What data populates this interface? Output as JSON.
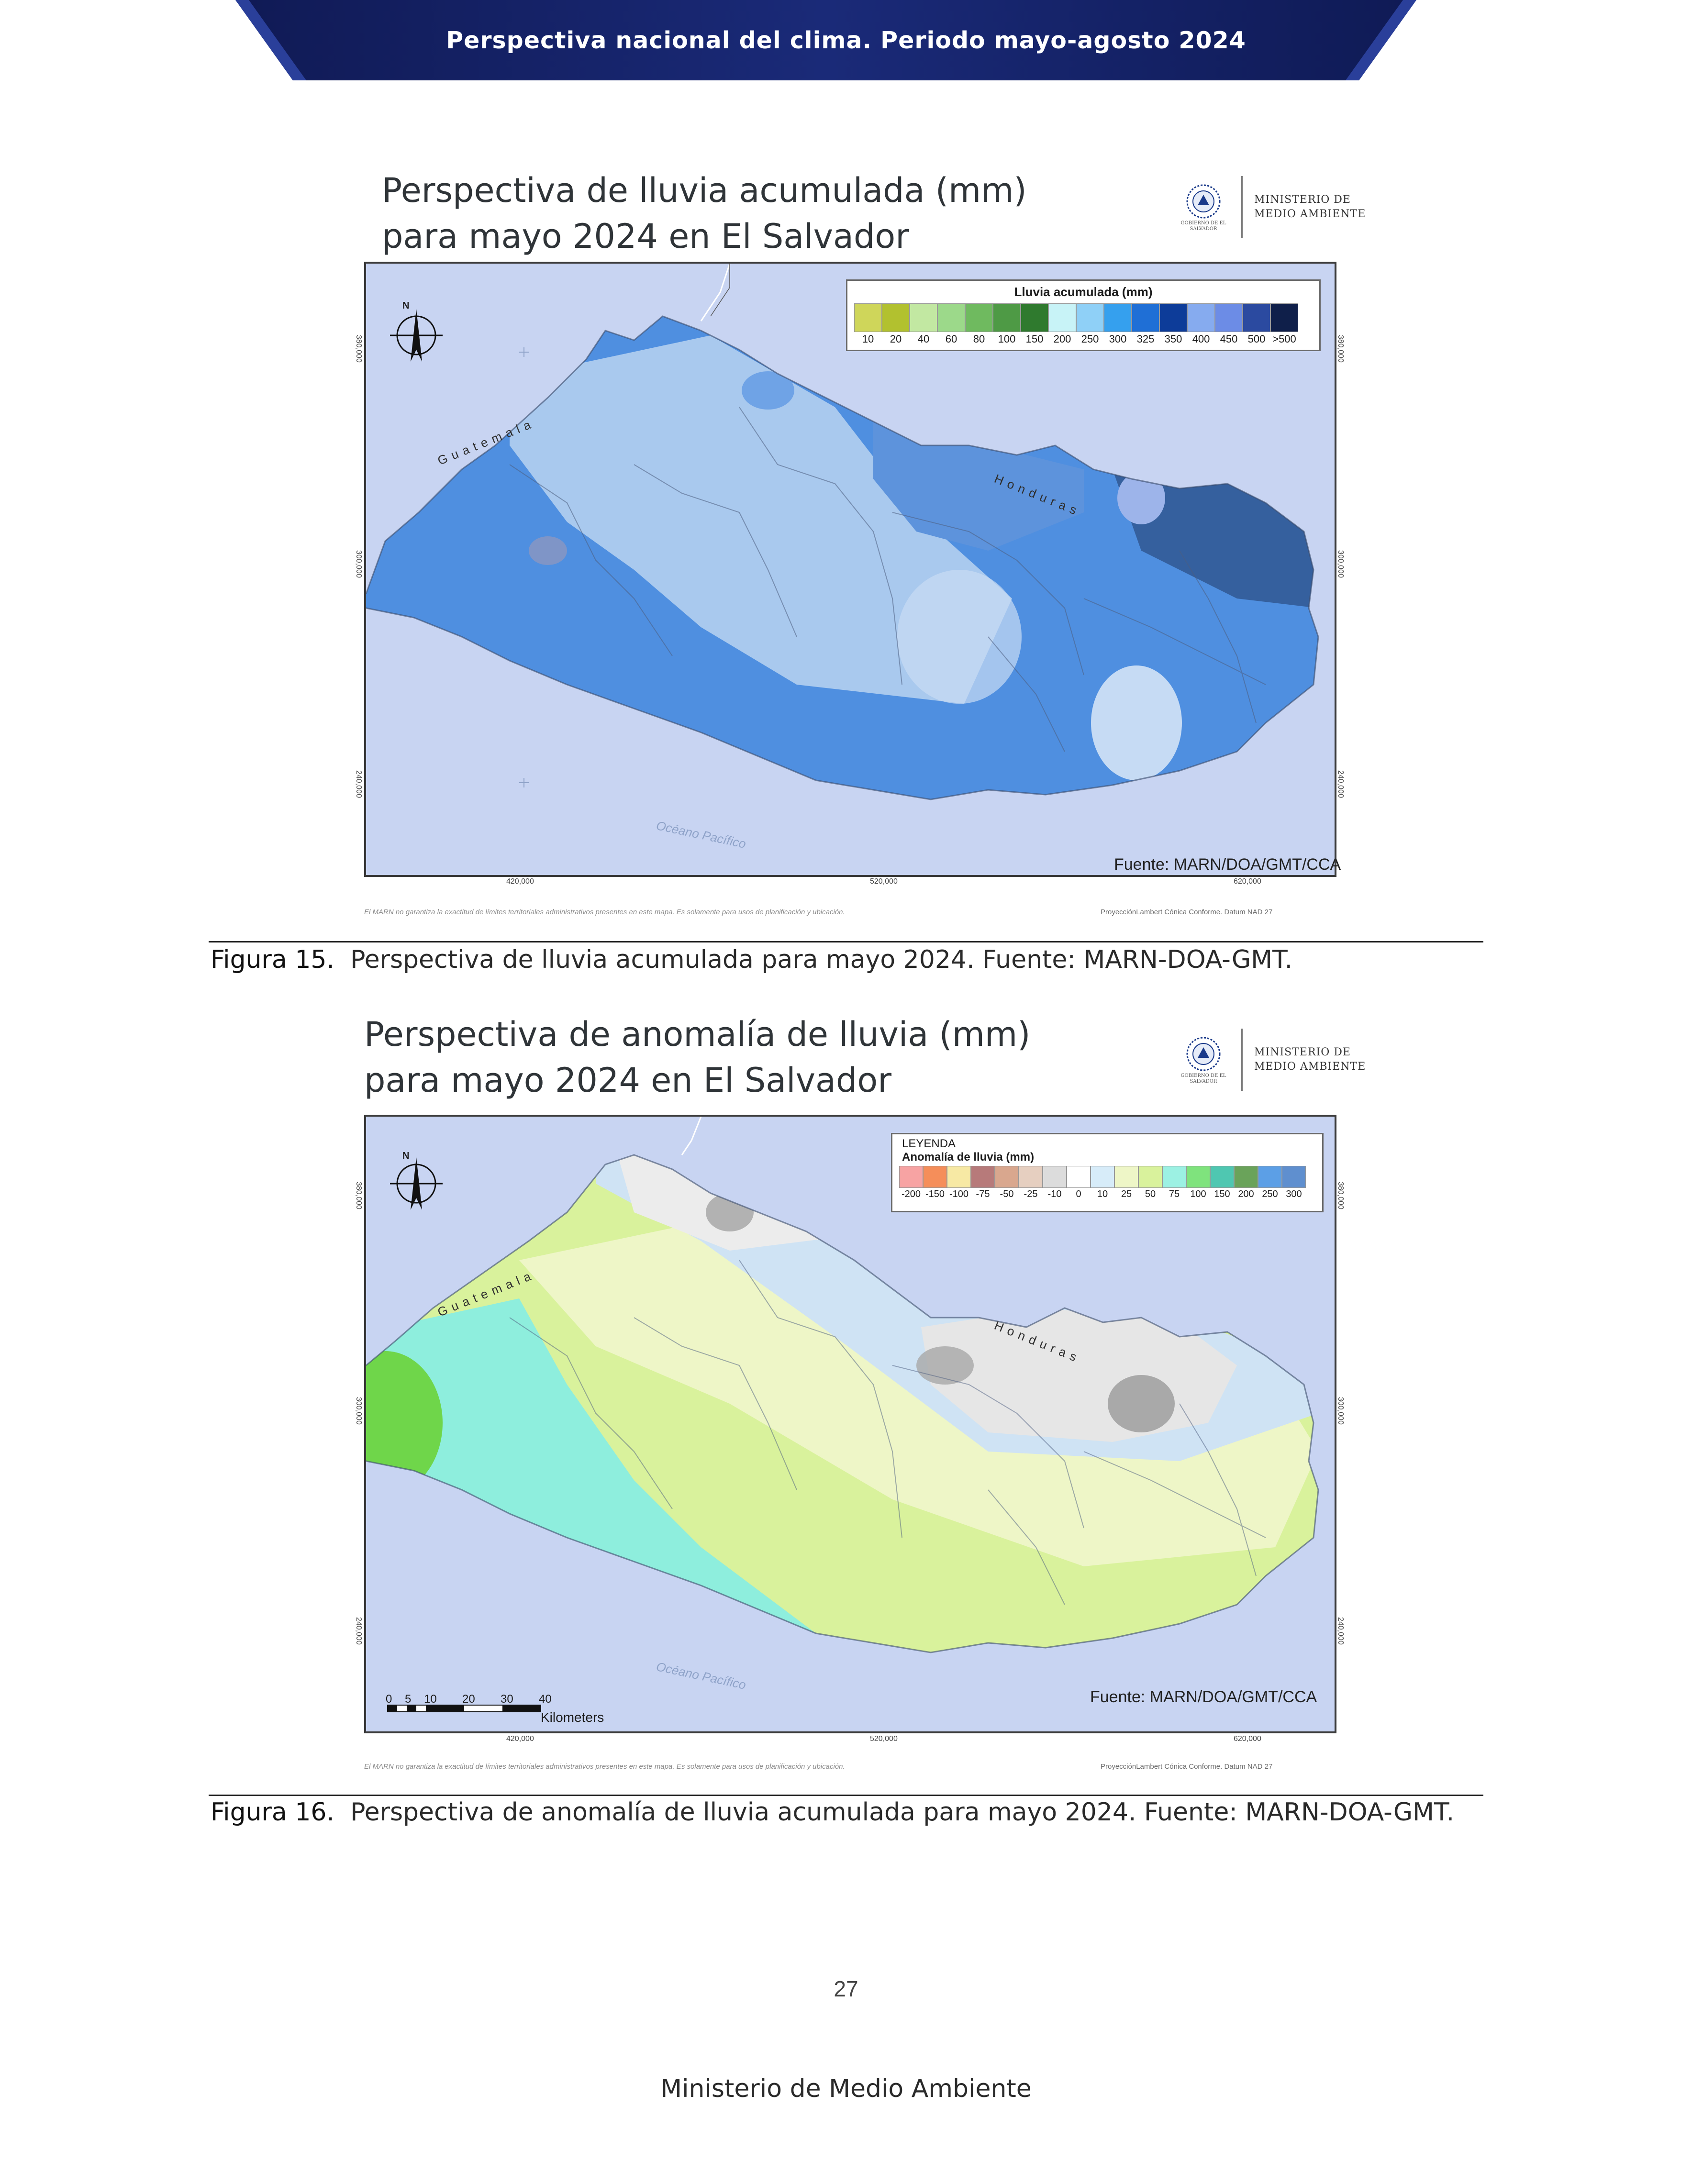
{
  "header": {
    "title": "Perspectiva nacional del clima. Periodo mayo-agosto 2024"
  },
  "figures": [
    {
      "title_line1": "Perspectiva de lluvia acumulada (mm)",
      "title_line2": "para mayo 2024 en El Salvador",
      "logo": {
        "line1": "MINISTERIO DE",
        "line2": "MEDIO AMBIENTE",
        "seal_sub": "GOBIERNO DE EL SALVADOR"
      },
      "legend": {
        "title": "Lluvia acumulada (mm)",
        "items": [
          {
            "label": "10",
            "color": "#cfd65a"
          },
          {
            "label": "20",
            "color": "#b2c12f"
          },
          {
            "label": "40",
            "color": "#c2e8a2"
          },
          {
            "label": "60",
            "color": "#9cd98a"
          },
          {
            "label": "80",
            "color": "#6fba5f"
          },
          {
            "label": "100",
            "color": "#4e9a45"
          },
          {
            "label": "150",
            "color": "#2f7a2e"
          },
          {
            "label": "200",
            "color": "#c8f3f7"
          },
          {
            "label": "250",
            "color": "#8fd0f7"
          },
          {
            "label": "300",
            "color": "#35a0ee"
          },
          {
            "label": "325",
            "color": "#1f6fd6"
          },
          {
            "label": "350",
            "color": "#0d3c99"
          },
          {
            "label": "400",
            "color": "#86abef"
          },
          {
            "label": "450",
            "color": "#6c8ce6"
          },
          {
            "label": "500",
            "color": "#2b4aa0"
          },
          {
            "label": ">500",
            "color": "#0f1f4a"
          }
        ]
      },
      "country_label_1": "Guatemala",
      "country_label_2": "Honduras",
      "ocean_label": "Océano Pacífico",
      "source": "Fuente: MARN/DOA/GMT/CCA",
      "x_ticks": [
        "420,000",
        "520,000",
        "620,000"
      ],
      "y_ticks": [
        "380,000",
        "300,000",
        "240,000"
      ],
      "disclaimer": "El MARN no garantiza la exactitud de límites territoriales administrativos presentes en este mapa. Es solamente para usos de planificación y ubicación.",
      "datum": "ProyecciónLambert Cónica Conforme. Datum NAD 27",
      "north": "N"
    },
    {
      "title_line1": "Perspectiva de anomalía de lluvia (mm)",
      "title_line2": "para mayo 2024 en El Salvador",
      "logo": {
        "line1": "MINISTERIO DE",
        "line2": "MEDIO AMBIENTE",
        "seal_sub": "GOBIERNO DE EL SALVADOR"
      },
      "legend": {
        "heading": "LEYENDA",
        "title": "Anomalía de lluvia (mm)",
        "items": [
          {
            "label": "-200",
            "color": "#f7a3a3"
          },
          {
            "label": "-150",
            "color": "#f58e5a"
          },
          {
            "label": "-100",
            "color": "#f7e9a4"
          },
          {
            "label": "-75",
            "color": "#b77a7a"
          },
          {
            "label": "-50",
            "color": "#d9a78e"
          },
          {
            "label": "-25",
            "color": "#e6cfc0"
          },
          {
            "label": "-10",
            "color": "#dcdcdc"
          },
          {
            "label": "0",
            "color": "#ffffff"
          },
          {
            "label": "10",
            "color": "#d7ecf9"
          },
          {
            "label": "25",
            "color": "#eef6c7"
          },
          {
            "label": "50",
            "color": "#d9f29c"
          },
          {
            "label": "75",
            "color": "#9cf1e3"
          },
          {
            "label": "100",
            "color": "#7fe37d"
          },
          {
            "label": "150",
            "color": "#4fc7b1"
          },
          {
            "label": "200",
            "color": "#6aa35a"
          },
          {
            "label": "250",
            "color": "#5c9fe6"
          },
          {
            "label": "300",
            "color": "#5f8fcf"
          }
        ]
      },
      "country_label_1": "Guatemala",
      "country_label_2": "Honduras",
      "ocean_label": "Océano Pacífico",
      "source": "Fuente: MARN/DOA/GMT/CCA",
      "scale_labels": [
        "0",
        "5",
        "10",
        "20",
        "30",
        "40"
      ],
      "scale_unit": "Kilometers",
      "x_ticks": [
        "420,000",
        "520,000",
        "620,000"
      ],
      "y_ticks": [
        "380,000",
        "300,000",
        "240,000"
      ],
      "disclaimer": "El MARN no garantiza la exactitud de límites territoriales administrativos presentes en este mapa. Es solamente para usos de planificación y ubicación.",
      "datum": "ProyecciónLambert Cónica Conforme. Datum NAD 27",
      "north": "N"
    }
  ],
  "captions": [
    {
      "label": "Figura 15.",
      "text": "Perspectiva de lluvia acumulada para mayo 2024. Fuente: MARN-DOA-GMT."
    },
    {
      "label": "Figura 16.",
      "text": "Perspectiva de anomalía de lluvia acumulada para mayo 2024. Fuente: MARN-DOA-GMT."
    }
  ],
  "page_number": "27",
  "footer": "Ministerio de Medio Ambiente"
}
